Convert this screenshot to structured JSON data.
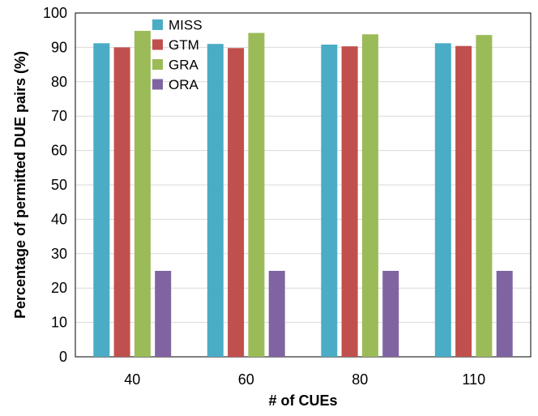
{
  "chart_data": {
    "type": "bar",
    "title": "",
    "xlabel": "# of CUEs",
    "ylabel": "Percentage of permitted DUE pairs (%)",
    "categories": [
      "40",
      "60",
      "80",
      "110"
    ],
    "ylim": [
      0,
      100
    ],
    "yticks": [
      "0",
      "10",
      "20",
      "30",
      "40",
      "50",
      "60",
      "70",
      "80",
      "90",
      "100"
    ],
    "grid": true,
    "legend_position": "top-left",
    "series": [
      {
        "name": "MISS",
        "color": "#4BACC6",
        "values": [
          91.2,
          91.0,
          90.8,
          91.2
        ]
      },
      {
        "name": "GTM",
        "color": "#C0504D",
        "values": [
          90.0,
          89.8,
          90.3,
          90.4
        ]
      },
      {
        "name": "GRA",
        "color": "#9BBB59",
        "values": [
          94.8,
          94.2,
          93.8,
          93.6
        ]
      },
      {
        "name": "ORA",
        "color": "#8064A2",
        "values": [
          25.0,
          25.0,
          25.0,
          25.0
        ]
      }
    ]
  }
}
